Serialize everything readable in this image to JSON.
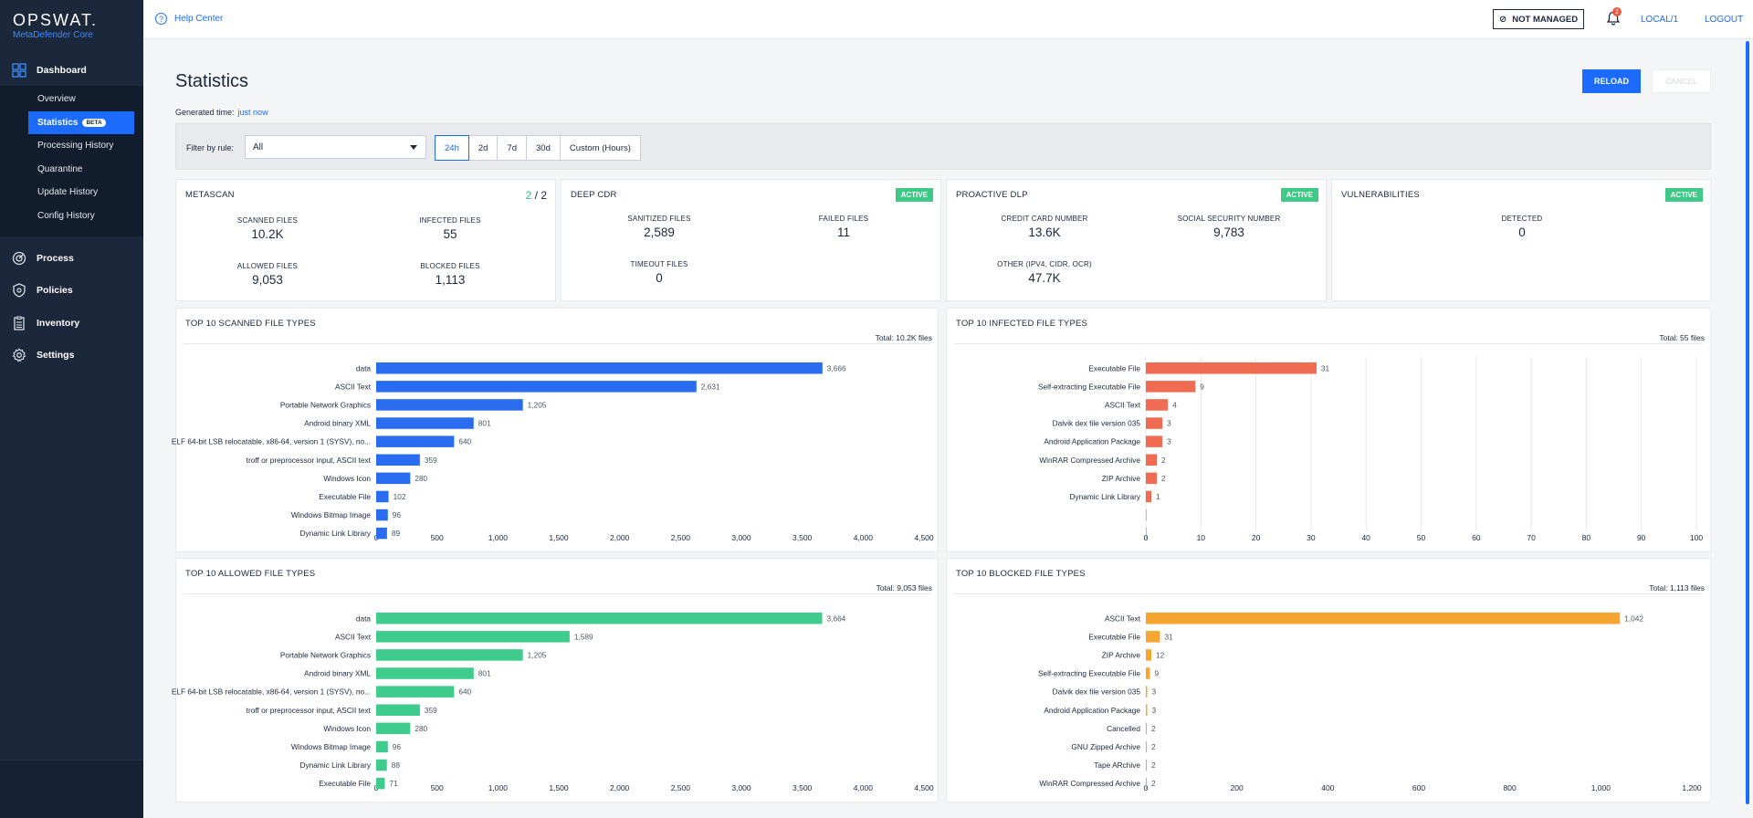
{
  "brand": {
    "name": "OPSWAT.",
    "product": "MetaDefender Core"
  },
  "nav": {
    "dashboard": "Dashboard",
    "sub_items": [
      {
        "label": "Overview"
      },
      {
        "label": "Statistics",
        "badge": "BETA",
        "active": true
      },
      {
        "label": "Processing History"
      },
      {
        "label": "Quarantine"
      },
      {
        "label": "Update History"
      },
      {
        "label": "Config History"
      }
    ],
    "main_items": [
      {
        "label": "Process",
        "icon": "process-icon"
      },
      {
        "label": "Policies",
        "icon": "shield-icon"
      },
      {
        "label": "Inventory",
        "icon": "inventory-icon"
      },
      {
        "label": "Settings",
        "icon": "gear-icon"
      }
    ]
  },
  "topbar": {
    "help": "Help Center",
    "not_managed": "NOT MANAGED",
    "notifications": "2",
    "user": "LOCAL/1",
    "logout": "LOGOUT"
  },
  "page": {
    "title": "Statistics",
    "generated_label": "Generated time:",
    "generated_value": "just now",
    "reload": "RELOAD",
    "cancel": "CANCEL"
  },
  "filter": {
    "label": "Filter by rule:",
    "value": "All",
    "ranges": [
      "24h",
      "2d",
      "7d",
      "30d",
      "Custom (Hours)"
    ],
    "active_range": "24h"
  },
  "cards": {
    "metascan": {
      "title": "METASCAN",
      "ratio_a": "2",
      "ratio_sep": " / ",
      "ratio_b": "2",
      "stats": [
        {
          "label": "SCANNED FILES",
          "value": "10.2K"
        },
        {
          "label": "INFECTED FILES",
          "value": "55"
        },
        {
          "label": "ALLOWED FILES",
          "value": "9,053"
        },
        {
          "label": "BLOCKED FILES",
          "value": "1,113"
        }
      ]
    },
    "deep_cdr": {
      "title": "DEEP CDR",
      "status": "ACTIVE",
      "stats": [
        {
          "label": "SANITIZED FILES",
          "value": "2,589"
        },
        {
          "label": "FAILED FILES",
          "value": "11"
        },
        {
          "label": "TIMEOUT FILES",
          "value": "0"
        }
      ]
    },
    "dlp": {
      "title": "PROACTIVE DLP",
      "status": "ACTIVE",
      "stats": [
        {
          "label": "CREDIT CARD NUMBER",
          "value": "13.6K"
        },
        {
          "label": "SOCIAL SECURITY NUMBER",
          "value": "9,783"
        },
        {
          "label": "OTHER (IPV4, CIDR, OCR)",
          "value": "47.7K"
        }
      ]
    },
    "vulns": {
      "title": "VULNERABILITIES",
      "status": "ACTIVE",
      "stats": [
        {
          "label": "DETECTED",
          "value": "0"
        }
      ]
    }
  },
  "chart_data": [
    {
      "type": "bar",
      "orientation": "horizontal",
      "title": "TOP 10 SCANNED FILE TYPES",
      "total": "Total: 10.2K files",
      "color": "#2a6cf0",
      "categories": [
        "data",
        "ASCII Text",
        "Portable Network Graphics",
        "Android binary XML",
        "ELF 64-bit LSB relocatable, x86-64, version 1 (SYSV), no...",
        "troff or preprocessor input, ASCII text",
        "Windows Icon",
        "Executable File",
        "Windows Bitmap Image",
        "Dynamic Link Library"
      ],
      "values": [
        3666,
        2631,
        1205,
        801,
        640,
        359,
        280,
        102,
        96,
        89
      ],
      "value_labels": [
        "3,666",
        "2,631",
        "1,205",
        "801",
        "640",
        "359",
        "280",
        "102",
        "96",
        "89"
      ],
      "xlim": [
        0,
        4500
      ],
      "ticks": [
        0,
        500,
        1000,
        1500,
        2000,
        2500,
        3000,
        3500,
        4000,
        4500
      ],
      "tick_labels": [
        "0",
        "500",
        "1,000",
        "1,500",
        "2,000",
        "2,500",
        "3,000",
        "3,500",
        "4,000",
        "4,500"
      ],
      "grid": false
    },
    {
      "type": "bar",
      "orientation": "horizontal",
      "title": "TOP 10 INFECTED FILE TYPES",
      "total": "Total: 55 files",
      "color": "#ef6b52",
      "categories": [
        "Executable File",
        "Self-extracting Executable File",
        "ASCII Text",
        "Dalvik dex file version 035",
        "Android Application Package",
        "WinRAR Compressed Archive",
        "ZIP Archive",
        "Dynamic Link Library",
        "",
        ""
      ],
      "values": [
        31,
        9,
        4,
        3,
        3,
        2,
        2,
        1,
        0,
        0
      ],
      "value_labels": [
        "31",
        "9",
        "4",
        "3",
        "3",
        "2",
        "2",
        "1",
        "",
        ""
      ],
      "xlim": [
        0,
        100
      ],
      "ticks": [
        0,
        10,
        20,
        30,
        40,
        50,
        60,
        70,
        80,
        90,
        100
      ],
      "tick_labels": [
        "0",
        "10",
        "20",
        "30",
        "40",
        "50",
        "60",
        "70",
        "80",
        "90",
        "100"
      ],
      "grid": true
    },
    {
      "type": "bar",
      "orientation": "horizontal",
      "title": "TOP 10 ALLOWED FILE TYPES",
      "total": "Total: 9,053 files",
      "color": "#3fcb8c",
      "categories": [
        "data",
        "ASCII Text",
        "Portable Network Graphics",
        "Android binary XML",
        "ELF 64-bit LSB relocatable, x86-64, version 1 (SYSV), no...",
        "troff or preprocessor input, ASCII text",
        "Windows Icon",
        "Windows Bitmap Image",
        "Dynamic Link Library",
        "Executable File"
      ],
      "values": [
        3664,
        1589,
        1205,
        801,
        640,
        359,
        280,
        96,
        88,
        71
      ],
      "value_labels": [
        "3,664",
        "1,589",
        "1,205",
        "801",
        "640",
        "359",
        "280",
        "96",
        "88",
        "71"
      ],
      "xlim": [
        0,
        4500
      ],
      "ticks": [
        0,
        500,
        1000,
        1500,
        2000,
        2500,
        3000,
        3500,
        4000,
        4500
      ],
      "tick_labels": [
        "0",
        "500",
        "1,000",
        "1,500",
        "2,000",
        "2,500",
        "3,000",
        "3,500",
        "4,000",
        "4,500"
      ],
      "grid": false
    },
    {
      "type": "bar",
      "orientation": "horizontal",
      "title": "TOP 10 BLOCKED FILE TYPES",
      "total": "Total: 1,113 files",
      "color": "#f6a530",
      "categories": [
        "ASCII Text",
        "Executable File",
        "ZIP Archive",
        "Self-extracting Executable File",
        "Dalvik dex file version 035",
        "Android Application Package",
        "Cancelled",
        "GNU Zipped Archive",
        "Tape ARchive",
        "WinRAR Compressed Archive"
      ],
      "values": [
        1042,
        31,
        12,
        9,
        3,
        3,
        2,
        2,
        2,
        2
      ],
      "value_labels": [
        "1,042",
        "31",
        "12",
        "9",
        "3",
        "3",
        "2",
        "2",
        "2",
        "2"
      ],
      "xlim": [
        0,
        1200
      ],
      "ticks": [
        0,
        200,
        400,
        600,
        800,
        1000,
        1200
      ],
      "tick_labels": [
        "0",
        "200",
        "400",
        "600",
        "800",
        "1,000",
        "1,200"
      ],
      "grid": false
    }
  ]
}
